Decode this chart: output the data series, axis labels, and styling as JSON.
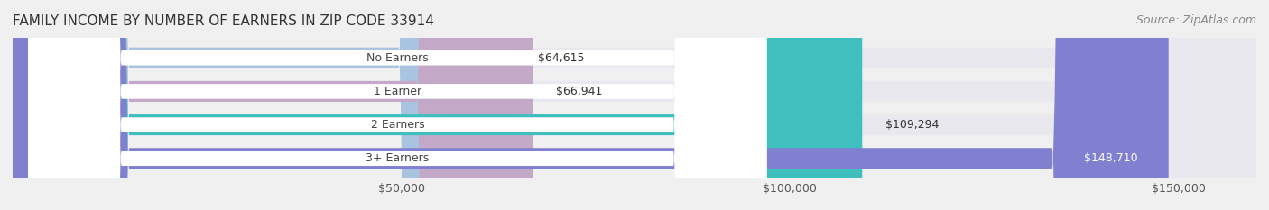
{
  "title": "FAMILY INCOME BY NUMBER OF EARNERS IN ZIP CODE 33914",
  "source": "Source: ZipAtlas.com",
  "categories": [
    "No Earners",
    "1 Earner",
    "2 Earners",
    "3+ Earners"
  ],
  "values": [
    64615,
    66941,
    109294,
    148710
  ],
  "bar_colors": [
    "#a8c4e0",
    "#c4a8c8",
    "#40bfbf",
    "#8080d0"
  ],
  "bar_labels": [
    "$64,615",
    "$66,941",
    "$109,294",
    "$148,710"
  ],
  "x_ticks": [
    50000,
    100000,
    150000
  ],
  "x_tick_labels": [
    "$50,000",
    "$100,000",
    "$150,000"
  ],
  "xlim": [
    0,
    160000
  ],
  "background_color": "#f0f0f0",
  "bar_background_color": "#e8e8ee",
  "title_fontsize": 11,
  "source_fontsize": 9,
  "label_fontsize": 9,
  "tick_fontsize": 9
}
